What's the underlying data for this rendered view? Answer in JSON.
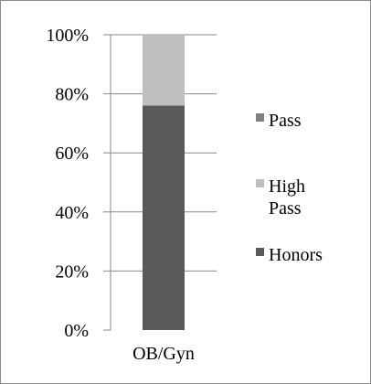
{
  "chart_data": {
    "type": "bar",
    "stacked": true,
    "categories": [
      "OB/Gyn"
    ],
    "series": [
      {
        "name": "Honors",
        "values": [
          76
        ],
        "color": "#595959"
      },
      {
        "name": "High Pass",
        "values": [
          24
        ],
        "color": "#bfbfbf"
      },
      {
        "name": "Pass",
        "values": [
          0
        ],
        "color": "#7f7f7f"
      }
    ],
    "ylim": [
      0,
      100
    ],
    "yticks": [
      "0%",
      "20%",
      "40%",
      "60%",
      "80%",
      "100%"
    ],
    "legend_order": [
      "Pass",
      "High Pass",
      "Honors"
    ],
    "legend_position": "right",
    "grid": true,
    "title": "",
    "xlabel": "",
    "ylabel": ""
  }
}
